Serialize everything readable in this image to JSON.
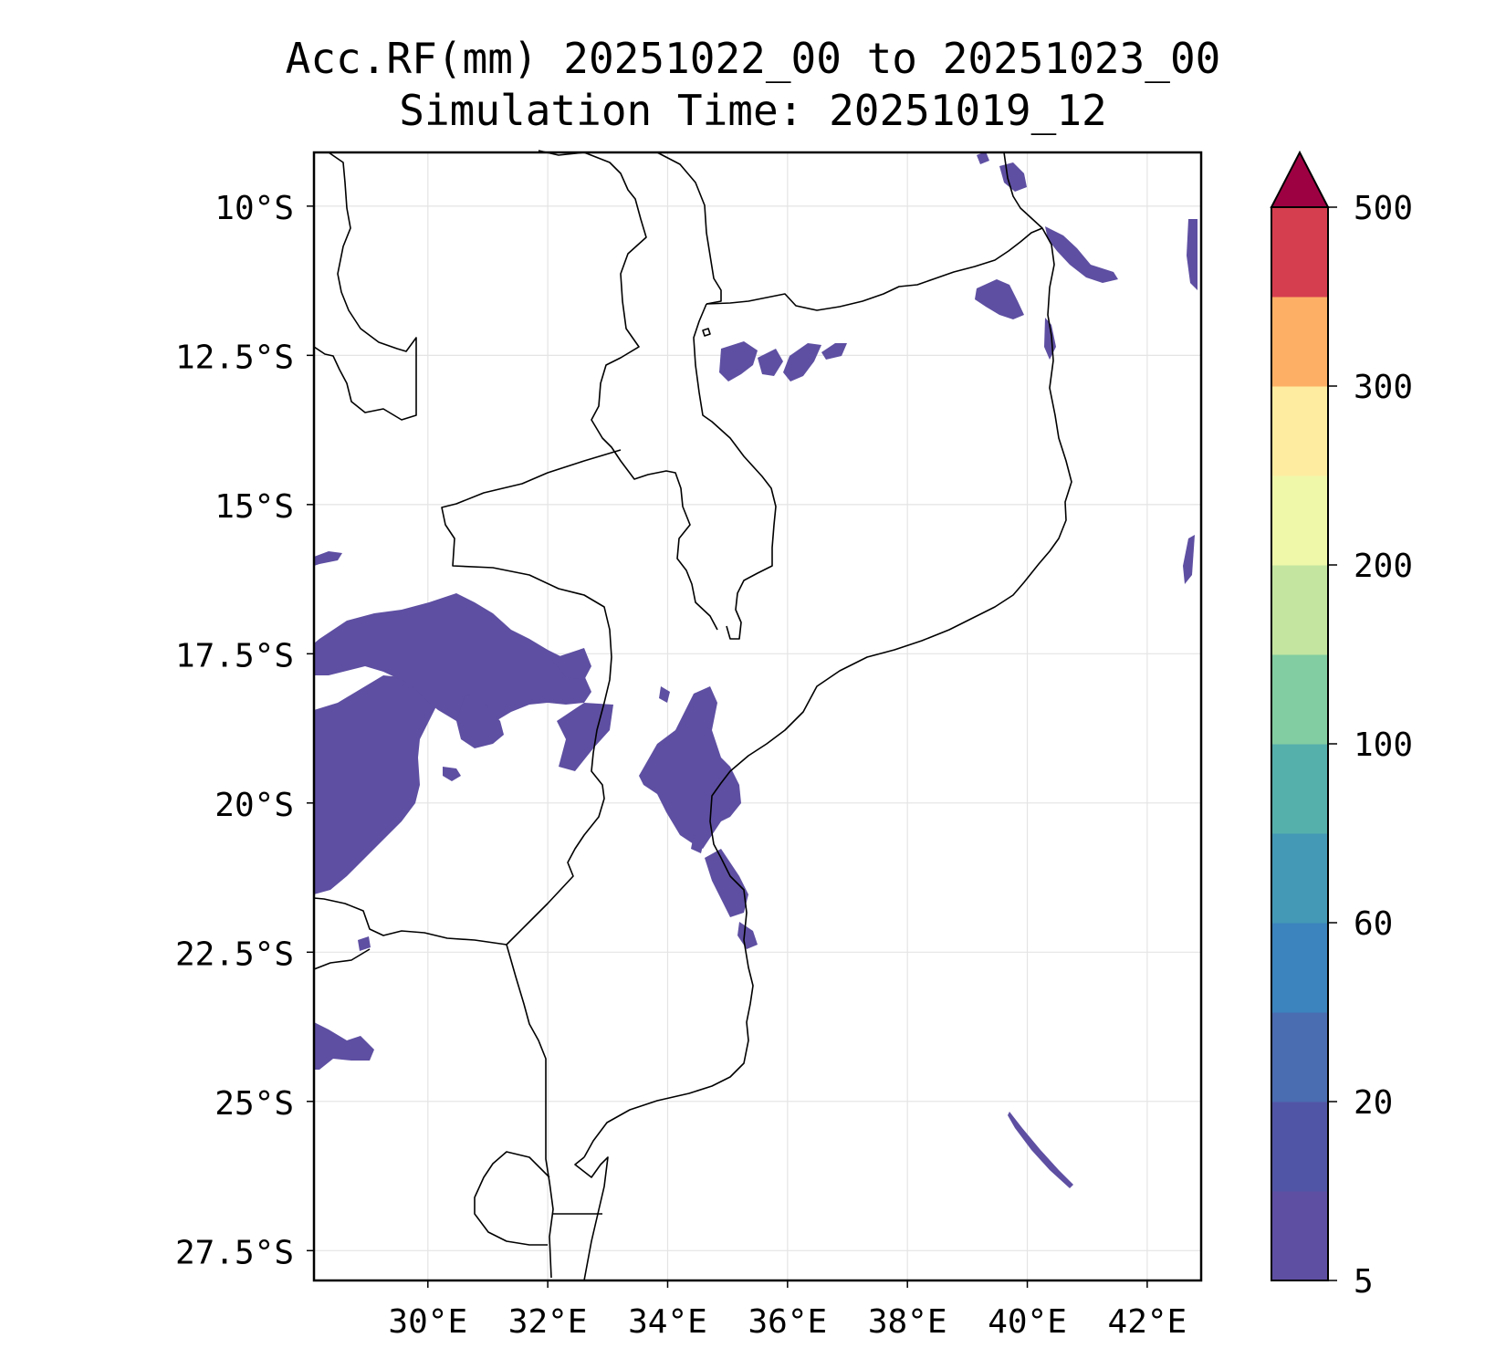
{
  "title": {
    "line1": "Acc.RF(mm) 20251022_00 to 20251023_00",
    "line2": "Simulation Time: 20251019_12"
  },
  "map": {
    "lat_ticks": [
      "10°S",
      "12.5°S",
      "15°S",
      "17.5°S",
      "20°S",
      "22.5°S",
      "25°S",
      "27.5°S"
    ],
    "lon_ticks": [
      "30°E",
      "32°E",
      "34°E",
      "36°E",
      "38°E",
      "40°E",
      "42°E"
    ],
    "lat_values": [
      -10,
      -12.5,
      -15,
      -17.5,
      -20,
      -22.5,
      -25,
      -27.5
    ],
    "lon_values": [
      30,
      32,
      34,
      36,
      38,
      40,
      42
    ],
    "extent": {
      "lon_min": 28.1,
      "lon_max": 42.9,
      "lat_min": -28.0,
      "lat_max": -9.1
    },
    "grid": true,
    "rain_color": "#5e4fa2"
  },
  "colorbar": {
    "tick_labels": [
      "500",
      "300",
      "200",
      "100",
      "60",
      "20",
      "5"
    ],
    "colors": [
      "#5e4fa2",
      "#5155a5",
      "#4a6cb1",
      "#3b84bd",
      "#4399b6",
      "#55afab",
      "#82cda1",
      "#c3e5a0",
      "#eff8a9",
      "#feeda1",
      "#fdb065",
      "#d53e4f"
    ],
    "extend_color": "#9e0142",
    "extend": "max"
  }
}
